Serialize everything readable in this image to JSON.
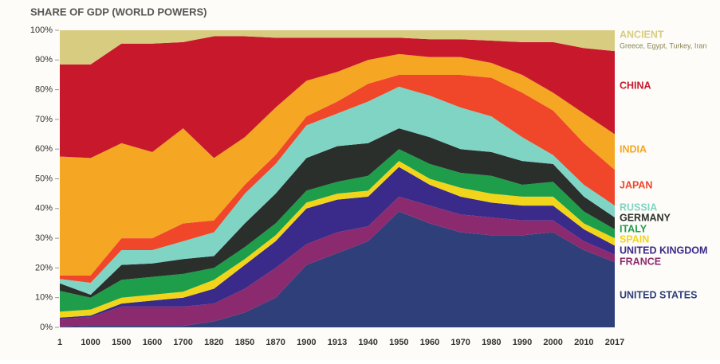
{
  "chart_data": {
    "type": "stacked-area",
    "title": "SHARE OF GDP (WORLD POWERS)",
    "categories": [
      "1",
      "1000",
      "1500",
      "1600",
      "1700",
      "1820",
      "1850",
      "1870",
      "1900",
      "1913",
      "1940",
      "1950",
      "1960",
      "1970",
      "1980",
      "1990",
      "2000",
      "2010",
      "2017"
    ],
    "ylim": [
      0,
      100
    ],
    "yticks": [
      {
        "value": 0,
        "label": "0%"
      },
      {
        "value": 10,
        "label": "10%"
      },
      {
        "value": 20,
        "label": "20%"
      },
      {
        "value": 30,
        "label": "30%"
      },
      {
        "value": 40,
        "label": "40%"
      },
      {
        "value": 50,
        "label": "50%"
      },
      {
        "value": 60,
        "label": "60%"
      },
      {
        "value": 70,
        "label": "70%"
      },
      {
        "value": 80,
        "label": "80%"
      },
      {
        "value": 90,
        "label": "90%"
      },
      {
        "value": 100,
        "label": "100%"
      }
    ],
    "series": [
      {
        "name": "UNITED STATES",
        "color": "#2e3f7a",
        "values": [
          0.3,
          0.5,
          0.5,
          0.5,
          0.5,
          2,
          5,
          10,
          21,
          25,
          29,
          39,
          35,
          32,
          31,
          31,
          32,
          26,
          22
        ]
      },
      {
        "name": "FRANCE",
        "color": "#8b2a6e",
        "values": [
          2.5,
          3,
          6.5,
          6.5,
          6.5,
          6,
          8,
          10,
          7,
          7,
          5,
          5,
          6,
          6,
          6,
          5,
          4,
          3,
          2.5
        ]
      },
      {
        "name": "UNITED KINGDOM",
        "color": "#3a2a8a",
        "values": [
          0.5,
          0.5,
          1,
          2,
          3,
          5,
          8,
          9,
          12,
          11,
          10,
          10,
          7,
          6,
          5,
          5,
          5,
          4,
          3
        ]
      },
      {
        "name": "SPAIN",
        "color": "#f2d51a",
        "values": [
          2,
          2,
          2,
          2,
          2,
          3,
          2,
          2,
          2,
          2,
          2,
          2,
          2,
          3,
          3,
          3,
          3,
          2,
          2.5
        ]
      },
      {
        "name": "ITALY",
        "color": "#1e9e4a",
        "values": [
          7,
          4,
          6,
          6,
          6,
          4,
          4,
          4,
          4,
          4,
          5,
          4,
          5,
          5,
          6,
          4,
          5,
          4,
          3
        ]
      },
      {
        "name": "GERMANY",
        "color": "#2b2f2c",
        "values": [
          2.5,
          1,
          5,
          4.5,
          5,
          4,
          8,
          10,
          11,
          12,
          11,
          7,
          9,
          8,
          8,
          8,
          6,
          5,
          4
        ]
      },
      {
        "name": "RUSSIA",
        "color": "#7fd4c4",
        "values": [
          1.5,
          4,
          5,
          4.5,
          6,
          8,
          10,
          10,
          11,
          11,
          14,
          14,
          14,
          14,
          12,
          8,
          3,
          4,
          4
        ]
      },
      {
        "name": "JAPAN",
        "color": "#f0462a",
        "values": [
          1.2,
          2.5,
          4,
          4,
          6,
          4,
          3,
          3,
          3,
          4,
          6,
          4,
          7,
          11,
          13,
          15,
          15,
          14,
          12
        ]
      },
      {
        "name": "INDIA",
        "color": "#f5a623",
        "values": [
          40,
          39.5,
          32,
          29,
          32,
          21,
          16,
          16,
          12,
          10,
          8,
          7,
          6,
          6,
          5,
          6,
          6,
          10,
          12
        ]
      },
      {
        "name": "CHINA",
        "color": "#c8182c",
        "values": [
          31,
          31.5,
          33.5,
          36.5,
          29,
          41,
          34,
          23.5,
          14.5,
          11.5,
          7.5,
          5.5,
          6,
          6,
          7.5,
          11,
          17,
          22,
          28
        ]
      },
      {
        "name": "ANCIENT",
        "description": "Greece, Egypt, Turkey, Iran",
        "color": "#d8cc80",
        "values": [
          11.5,
          11.5,
          4.5,
          4.5,
          4,
          2,
          2,
          2.5,
          2.5,
          2.5,
          2.5,
          2.5,
          3,
          3,
          3.5,
          4,
          4,
          6,
          7
        ]
      }
    ]
  }
}
